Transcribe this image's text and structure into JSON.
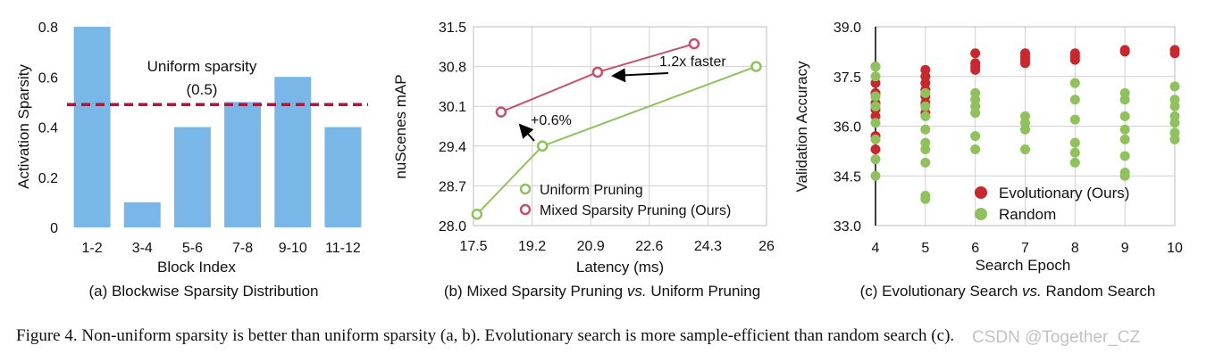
{
  "caption": "Figure 4. Non-uniform sparsity is better than uniform sparsity (a, b). Evolutionary search is more sample-efficient than random search (c).",
  "watermark": "CSDN @Together_CZ",
  "colors": {
    "bar": "#79b7e8",
    "uniform_line": "#a11c3c",
    "uniform_pruning": "#8fc15d",
    "mixed_pruning": "#c6506c",
    "evolutionary": "#c7282d",
    "random": "#8fc15d",
    "grid": "#d0d0d0",
    "arrow": "#000000"
  },
  "chart_data": [
    {
      "type": "bar",
      "caption": "(a) Blockwise Sparsity Distribution",
      "xlabel": "Block Index",
      "ylabel": "Activation Sparsity",
      "categories": [
        "1-2",
        "3-4",
        "5-6",
        "7-8",
        "9-10",
        "11-12"
      ],
      "values": [
        0.8,
        0.1,
        0.4,
        0.5,
        0.6,
        0.4
      ],
      "ylim": [
        0,
        0.8
      ],
      "yticks": [
        "0",
        "0.2",
        "0.4",
        "0.6",
        "0.8"
      ],
      "reference_line": {
        "value": 0.49,
        "label_line1": "Uniform sparsity",
        "label_line2": "(0.5)"
      },
      "grid": false
    },
    {
      "type": "line",
      "caption_pre": "(b) Mixed Sparsity Pruning ",
      "caption_em": "vs.",
      "caption_post": " Uniform Pruning",
      "xlabel": "Latency (ms)",
      "ylabel": "nuScenes mAP",
      "xlim": [
        17.5,
        26
      ],
      "ylim": [
        28.0,
        31.5
      ],
      "xticks": [
        "17.5",
        "19.2",
        "20.9",
        "22.6",
        "24.3",
        "26"
      ],
      "yticks": [
        "28.0",
        "28.7",
        "29.4",
        "30.1",
        "30.8",
        "31.5"
      ],
      "grid": true,
      "legend_position": "bottom-right",
      "series": [
        {
          "name": "Uniform Pruning",
          "x": [
            17.6,
            19.5,
            25.7
          ],
          "y": [
            28.2,
            29.4,
            30.8
          ]
        },
        {
          "name": "Mixed Sparsity Pruning (Ours)",
          "x": [
            18.3,
            21.1,
            23.9
          ],
          "y": [
            30.0,
            30.7,
            31.2
          ]
        }
      ],
      "annotations": [
        {
          "text": "1.2x faster",
          "x": 23.8,
          "y": 30.82
        },
        {
          "text": "+0.6%",
          "x": 18.9,
          "y": 29.85
        }
      ]
    },
    {
      "type": "scatter",
      "caption_pre": "(c) Evolutionary Search ",
      "caption_em": "vs.",
      "caption_post": " Random Search",
      "xlabel": "Search Epoch",
      "ylabel": "Validation Accuracy",
      "xlim": [
        4,
        10
      ],
      "ylim": [
        33.0,
        39.0
      ],
      "xticks": [
        "4",
        "5",
        "6",
        "7",
        "8",
        "9",
        "10"
      ],
      "yticks": [
        "33.0",
        "34.5",
        "36.0",
        "37.5",
        "39.0"
      ],
      "grid": true,
      "legend_position": "bottom-right",
      "series": [
        {
          "name": "Evolutionary (Ours)",
          "points": [
            [
              4,
              37.8
            ],
            [
              4,
              37.3
            ],
            [
              4,
              37.0
            ],
            [
              4,
              36.9
            ],
            [
              4,
              36.7
            ],
            [
              4,
              36.5
            ],
            [
              4,
              36.3
            ],
            [
              4,
              35.7
            ],
            [
              4,
              35.3
            ],
            [
              5,
              37.7
            ],
            [
              5,
              37.5
            ],
            [
              5,
              37.3
            ],
            [
              5,
              37.1
            ],
            [
              5,
              36.9
            ],
            [
              5,
              36.7
            ],
            [
              5,
              36.4
            ],
            [
              6,
              38.2
            ],
            [
              6,
              37.9
            ],
            [
              6,
              37.8
            ],
            [
              6,
              37.7
            ],
            [
              7,
              38.2
            ],
            [
              7,
              38.1
            ],
            [
              7,
              38.0
            ],
            [
              7,
              37.9
            ],
            [
              8,
              38.2
            ],
            [
              8,
              38.1
            ],
            [
              8,
              38.0
            ],
            [
              9,
              38.3
            ],
            [
              9,
              38.25
            ],
            [
              10,
              38.3
            ],
            [
              10,
              38.2
            ]
          ]
        },
        {
          "name": "Random",
          "points": [
            [
              4,
              37.8
            ],
            [
              4,
              37.5
            ],
            [
              4,
              36.9
            ],
            [
              4,
              36.6
            ],
            [
              4,
              36.1
            ],
            [
              4,
              35.6
            ],
            [
              4,
              35.0
            ],
            [
              4,
              34.5
            ],
            [
              5,
              37.0
            ],
            [
              5,
              36.6
            ],
            [
              5,
              36.3
            ],
            [
              5,
              35.9
            ],
            [
              5,
              35.5
            ],
            [
              5,
              35.3
            ],
            [
              5,
              34.9
            ],
            [
              5,
              33.9
            ],
            [
              5,
              33.8
            ],
            [
              6,
              37.0
            ],
            [
              6,
              36.8
            ],
            [
              6,
              36.6
            ],
            [
              6,
              36.4
            ],
            [
              6,
              35.7
            ],
            [
              6,
              35.3
            ],
            [
              7,
              36.3
            ],
            [
              7,
              36.1
            ],
            [
              7,
              35.9
            ],
            [
              7,
              35.3
            ],
            [
              8,
              37.3
            ],
            [
              8,
              36.8
            ],
            [
              8,
              36.2
            ],
            [
              8,
              35.5
            ],
            [
              8,
              35.2
            ],
            [
              8,
              34.9
            ],
            [
              9,
              37.0
            ],
            [
              9,
              36.8
            ],
            [
              9,
              36.3
            ],
            [
              9,
              35.9
            ],
            [
              9,
              35.6
            ],
            [
              9,
              35.1
            ],
            [
              9,
              34.6
            ],
            [
              9,
              34.5
            ],
            [
              10,
              37.2
            ],
            [
              10,
              36.8
            ],
            [
              10,
              36.6
            ],
            [
              10,
              36.3
            ],
            [
              10,
              36.1
            ],
            [
              10,
              35.8
            ],
            [
              10,
              35.6
            ]
          ]
        }
      ]
    }
  ]
}
